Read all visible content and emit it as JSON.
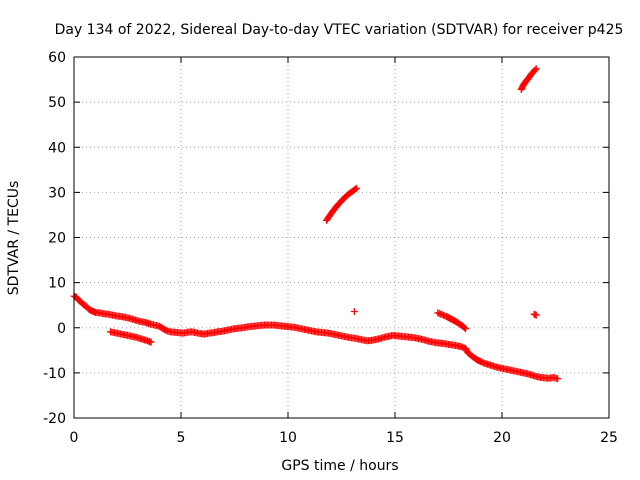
{
  "chart_data": {
    "type": "scatter",
    "title": "Day 134 of 2022, Sidereal Day-to-day VTEC variation (SDTVAR) for receiver p425",
    "xlabel": "GPS time / hours",
    "ylabel": "SDTVAR / TECUs",
    "xlim": [
      0,
      25
    ],
    "ylim": [
      -20,
      60
    ],
    "xticks": [
      "0",
      "5",
      "10",
      "15",
      "20",
      "25"
    ],
    "yticks": [
      "-20",
      "-10",
      "0",
      "10",
      "20",
      "30",
      "40",
      "50",
      "60"
    ],
    "grid": true,
    "marker": "+",
    "color": "#ff0000",
    "series": [
      {
        "name": "main",
        "points": [
          [
            0.0,
            7.0
          ],
          [
            0.1,
            6.8
          ],
          [
            0.2,
            6.2
          ],
          [
            0.3,
            5.8
          ],
          [
            0.4,
            5.3
          ],
          [
            0.5,
            5.0
          ],
          [
            0.6,
            4.6
          ],
          [
            0.7,
            4.1
          ],
          [
            0.8,
            3.8
          ],
          [
            0.9,
            3.6
          ],
          [
            1.0,
            3.4
          ],
          [
            1.2,
            3.3
          ],
          [
            1.4,
            3.1
          ],
          [
            1.6,
            3.0
          ],
          [
            1.8,
            2.8
          ],
          [
            2.0,
            2.6
          ],
          [
            2.2,
            2.5
          ],
          [
            2.4,
            2.3
          ],
          [
            2.6,
            2.1
          ],
          [
            2.8,
            1.8
          ],
          [
            3.0,
            1.5
          ],
          [
            3.2,
            1.3
          ],
          [
            3.4,
            1.1
          ],
          [
            3.5,
            0.9
          ],
          [
            4.0,
            0.3
          ],
          [
            4.1,
            0.0
          ],
          [
            4.2,
            -0.3
          ],
          [
            4.3,
            -0.6
          ],
          [
            4.5,
            -0.9
          ],
          [
            4.7,
            -1.0
          ],
          [
            4.9,
            -1.1
          ],
          [
            5.1,
            -1.2
          ],
          [
            5.3,
            -1.0
          ],
          [
            5.5,
            -0.9
          ],
          [
            5.7,
            -1.1
          ],
          [
            5.9,
            -1.3
          ],
          [
            6.1,
            -1.4
          ],
          [
            6.3,
            -1.2
          ],
          [
            6.5,
            -1.1
          ],
          [
            6.7,
            -0.9
          ],
          [
            6.9,
            -0.8
          ],
          [
            7.1,
            -0.6
          ],
          [
            7.3,
            -0.4
          ],
          [
            7.5,
            -0.2
          ],
          [
            7.7,
            -0.1
          ],
          [
            7.9,
            0.0
          ],
          [
            8.1,
            0.2
          ],
          [
            8.3,
            0.3
          ],
          [
            8.5,
            0.4
          ],
          [
            8.7,
            0.5
          ],
          [
            8.9,
            0.6
          ],
          [
            9.1,
            0.6
          ],
          [
            9.3,
            0.6
          ],
          [
            9.5,
            0.5
          ],
          [
            9.7,
            0.4
          ],
          [
            9.9,
            0.3
          ],
          [
            10.1,
            0.2
          ],
          [
            10.3,
            0.1
          ],
          [
            10.5,
            -0.1
          ],
          [
            10.7,
            -0.3
          ],
          [
            10.9,
            -0.5
          ],
          [
            11.1,
            -0.7
          ],
          [
            11.3,
            -0.9
          ],
          [
            11.5,
            -1.0
          ],
          [
            11.7,
            -1.1
          ],
          [
            11.9,
            -1.2
          ],
          [
            12.1,
            -1.4
          ],
          [
            12.3,
            -1.6
          ],
          [
            12.5,
            -1.8
          ],
          [
            12.7,
            -2.0
          ],
          [
            12.9,
            -2.2
          ],
          [
            13.1,
            -2.3
          ],
          [
            13.3,
            -2.5
          ],
          [
            13.5,
            -2.7
          ],
          [
            13.7,
            -2.9
          ],
          [
            13.9,
            -2.8
          ],
          [
            14.1,
            -2.6
          ],
          [
            14.3,
            -2.4
          ],
          [
            14.5,
            -2.1
          ],
          [
            14.7,
            -1.9
          ],
          [
            14.9,
            -1.7
          ],
          [
            15.1,
            -1.8
          ],
          [
            15.3,
            -1.9
          ],
          [
            15.5,
            -2.0
          ],
          [
            15.7,
            -2.1
          ],
          [
            15.9,
            -2.2
          ],
          [
            16.1,
            -2.4
          ],
          [
            16.3,
            -2.6
          ],
          [
            16.5,
            -2.9
          ],
          [
            16.7,
            -3.1
          ],
          [
            16.9,
            -3.3
          ],
          [
            17.1,
            -3.4
          ],
          [
            17.3,
            -3.5
          ],
          [
            17.5,
            -3.7
          ],
          [
            17.7,
            -3.8
          ],
          [
            17.9,
            -4.0
          ],
          [
            18.1,
            -4.2
          ],
          [
            18.3,
            -4.6
          ],
          [
            18.4,
            -5.5
          ],
          [
            18.6,
            -6.3
          ],
          [
            18.8,
            -7.0
          ],
          [
            19.0,
            -7.5
          ],
          [
            19.2,
            -7.9
          ],
          [
            19.4,
            -8.2
          ],
          [
            19.6,
            -8.5
          ],
          [
            19.8,
            -8.8
          ],
          [
            20.0,
            -9.0
          ],
          [
            20.2,
            -9.2
          ],
          [
            20.4,
            -9.4
          ],
          [
            20.6,
            -9.6
          ],
          [
            20.8,
            -9.8
          ],
          [
            21.0,
            -10.0
          ],
          [
            21.2,
            -10.2
          ],
          [
            21.4,
            -10.5
          ],
          [
            21.6,
            -10.8
          ],
          [
            21.8,
            -11.0
          ],
          [
            22.0,
            -11.1
          ],
          [
            22.2,
            -11.2
          ],
          [
            22.4,
            -11.0
          ],
          [
            22.6,
            -11.3
          ]
        ]
      },
      {
        "name": "lower-arc",
        "points": [
          [
            1.7,
            -0.9
          ],
          [
            1.9,
            -1.1
          ],
          [
            2.1,
            -1.3
          ],
          [
            2.3,
            -1.5
          ],
          [
            2.5,
            -1.7
          ],
          [
            2.7,
            -1.9
          ],
          [
            2.9,
            -2.1
          ],
          [
            3.1,
            -2.4
          ],
          [
            3.3,
            -2.7
          ],
          [
            3.5,
            -3.0
          ],
          [
            3.6,
            -3.2
          ]
        ]
      },
      {
        "name": "arc-12h",
        "points": [
          [
            11.8,
            23.8
          ],
          [
            12.0,
            25.2
          ],
          [
            12.2,
            26.5
          ],
          [
            12.4,
            27.6
          ],
          [
            12.6,
            28.6
          ],
          [
            12.8,
            29.5
          ],
          [
            13.0,
            30.2
          ],
          [
            13.2,
            30.9
          ]
        ]
      },
      {
        "name": "arc-21h",
        "points": [
          [
            20.9,
            52.8
          ],
          [
            21.0,
            53.8
          ],
          [
            21.1,
            54.5
          ],
          [
            21.2,
            55.1
          ],
          [
            21.3,
            55.7
          ],
          [
            21.4,
            56.4
          ],
          [
            21.6,
            57.4
          ]
        ]
      },
      {
        "name": "arc-17h",
        "points": [
          [
            17.0,
            3.3
          ],
          [
            17.2,
            2.9
          ],
          [
            17.4,
            2.5
          ],
          [
            17.6,
            2.0
          ],
          [
            17.8,
            1.5
          ],
          [
            18.0,
            0.9
          ],
          [
            18.2,
            0.2
          ],
          [
            18.3,
            -0.2
          ]
        ]
      },
      {
        "name": "isolated",
        "points": [
          [
            13.1,
            3.6
          ],
          [
            21.5,
            3.0
          ],
          [
            21.6,
            2.8
          ]
        ]
      }
    ]
  }
}
